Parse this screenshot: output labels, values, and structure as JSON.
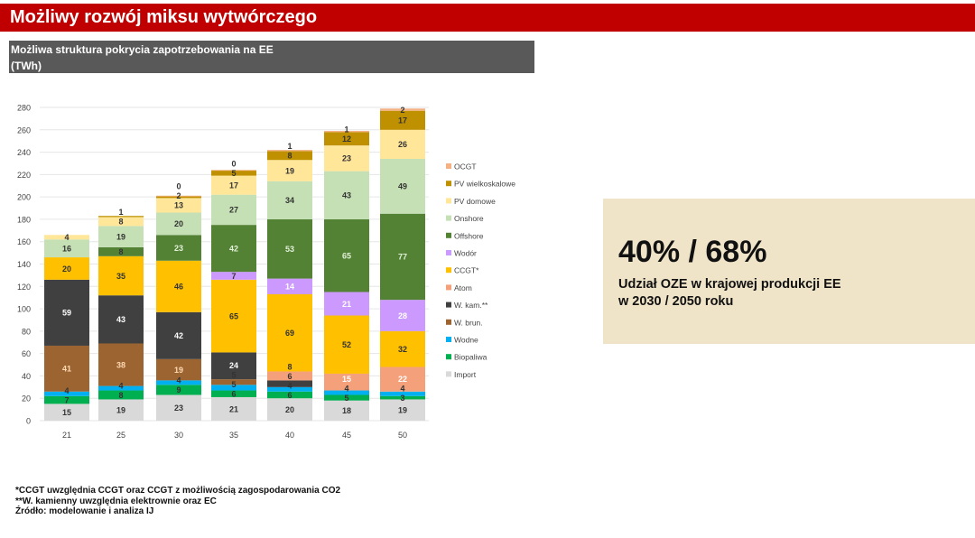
{
  "header": {
    "title": "Możliwy rozwój miksu wytwórczego"
  },
  "subtitle": {
    "line1": "Możliwa struktura pokrycia zapotrzebowania na EE",
    "line2": "(TWh)"
  },
  "panel": {
    "headline": "40% / 68%",
    "line1": "Udział OZE w krajowej produkcji EE",
    "line2": "w 2030 / 2050 roku"
  },
  "notes": [
    "*CCGT uwzględnia CCGT oraz CCGT z możliwością zagospodarowania CO2",
    "**W. kamienny uwzględnia elektrownie oraz EC",
    "Źródło: modelowanie i analiza IJ"
  ],
  "chart_data": {
    "type": "bar",
    "stacked": true,
    "categories": [
      "21",
      "25",
      "30",
      "35",
      "40",
      "45",
      "50"
    ],
    "ylim": [
      0,
      280
    ],
    "yticks": [
      0,
      20,
      40,
      60,
      80,
      100,
      120,
      140,
      160,
      180,
      200,
      220,
      240,
      260,
      280
    ],
    "grid": true,
    "legend_position": "right",
    "series": [
      {
        "name": "Import",
        "color": "#d9d9d9",
        "values": [
          15,
          19,
          23,
          21,
          20,
          18,
          19
        ]
      },
      {
        "name": "Biopaliwa",
        "color": "#00b050",
        "values": [
          7,
          8,
          9,
          6,
          6,
          5,
          3
        ]
      },
      {
        "name": "Wodne",
        "color": "#00b0f0",
        "values": [
          4,
          4,
          4,
          5,
          4,
          4,
          4
        ]
      },
      {
        "name": "W. brun.",
        "color": "#9c6430",
        "values": [
          41,
          38,
          19,
          5,
          null,
          null,
          null
        ]
      },
      {
        "name": "W. kam.**",
        "color": "#404040",
        "values": [
          59,
          43,
          42,
          24,
          6,
          null,
          null
        ]
      },
      {
        "name": "Atom",
        "color": "#f4a07a",
        "values": [
          null,
          null,
          null,
          null,
          8,
          15,
          22
        ]
      },
      {
        "name": "CCGT*",
        "color": "#ffc000",
        "values": [
          20,
          35,
          46,
          65,
          69,
          52,
          32
        ]
      },
      {
        "name": "Wodór",
        "color": "#cc99ff",
        "values": [
          null,
          null,
          null,
          7,
          14,
          21,
          28
        ]
      },
      {
        "name": "Offshore",
        "color": "#548235",
        "values": [
          null,
          8,
          23,
          42,
          53,
          65,
          77
        ]
      },
      {
        "name": "Onshore",
        "color": "#c5e0b4",
        "values": [
          16,
          19,
          20,
          27,
          34,
          43,
          49
        ]
      },
      {
        "name": "PV domowe",
        "color": "#ffe699",
        "values": [
          4,
          8,
          13,
          17,
          19,
          23,
          26
        ]
      },
      {
        "name": "PV wielkoskalowe",
        "color": "#bf9000",
        "values": [
          null,
          1,
          2,
          5,
          8,
          12,
          17
        ]
      },
      {
        "name": "OCGT",
        "color": "#f4b183",
        "values": [
          null,
          null,
          0,
          0,
          1,
          1,
          2
        ]
      }
    ]
  }
}
